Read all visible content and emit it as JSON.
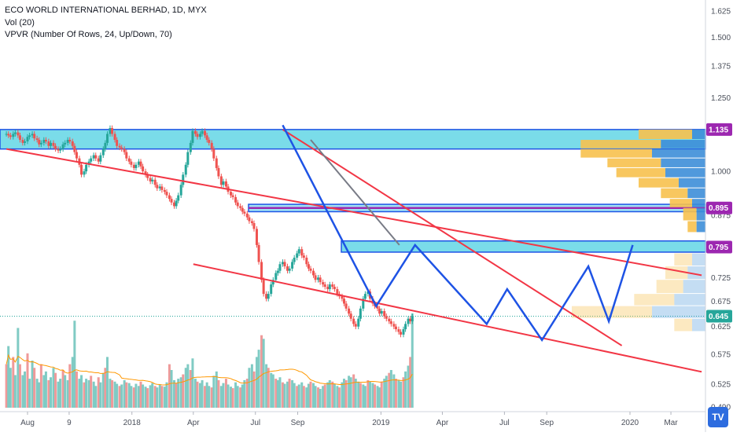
{
  "legend": {
    "line1": "ECO WORLD INTERNATIONAL BERHAD, 1D, MYX",
    "line2": "Vol (20)",
    "line3": "VPVR (Number Of Rows, 24, Up/Down, 70)"
  },
  "chart_data": {
    "type": "candlestick",
    "symbol": "ECO WORLD INTERNATIONAL BERHAD",
    "interval": "1D",
    "exchange": "MYX",
    "price_axis": {
      "ticks": [
        "1.625",
        "1.500",
        "1.375",
        "1.250",
        "1.000",
        "0.875",
        "0.725",
        "0.675",
        "0.625",
        "0.575",
        "0.525",
        "0.490"
      ],
      "tick_values": [
        1.625,
        1.5,
        1.375,
        1.25,
        1.0,
        0.875,
        0.725,
        0.675,
        0.625,
        0.575,
        0.525,
        0.49
      ],
      "log_scale": true
    },
    "time_axis": {
      "labels": [
        "Aug",
        "9",
        "2018",
        "Apr",
        "Jul",
        "Sep",
        "2019",
        "Apr",
        "Jul",
        "Sep",
        "2020",
        "Mar"
      ],
      "dates": [
        "2017-08-01",
        "2017-10-01",
        "2018-01-01",
        "2018-04-01",
        "2018-07-01",
        "2018-09-01",
        "2019-01-01",
        "2019-04-01",
        "2019-07-01",
        "2019-09-01",
        "2020-01-01",
        "2020-03-01"
      ]
    },
    "price_tags": [
      {
        "label": "1.135",
        "value": 1.135,
        "color": "#9c27b0"
      },
      {
        "label": "0.895",
        "value": 0.895,
        "color": "#9c27b0"
      },
      {
        "label": "0.795",
        "value": 0.795,
        "color": "#9c27b0"
      },
      {
        "label": "0.645",
        "value": 0.645,
        "color": "#26a69a"
      }
    ],
    "zones": [
      {
        "from": 1.07,
        "to": 1.135,
        "color": "#4dd0e1"
      },
      {
        "from": 0.885,
        "to": 0.905,
        "color": "#7fd8f0"
      },
      {
        "from": 0.783,
        "to": 0.81,
        "color": "#4dd0e1"
      }
    ],
    "red_lines": [
      {
        "from": [
          "2017-07-01",
          1.07
        ],
        "to": [
          "2020-04-15",
          0.73
        ]
      },
      {
        "from": [
          "2018-04-01",
          0.755
        ],
        "to": [
          "2020-04-15",
          0.545
        ]
      },
      {
        "from": [
          "2018-08-10",
          1.135
        ],
        "to": [
          "2019-12-20",
          0.59
        ]
      }
    ],
    "gray_line": {
      "from": [
        "2018-09-20",
        1.1
      ],
      "to": [
        "2019-01-28",
        0.8
      ]
    },
    "blue_zigzag": [
      [
        "2018-08-10",
        1.15
      ],
      [
        "2018-12-25",
        0.665
      ],
      [
        "2019-02-20",
        0.8
      ],
      [
        "2019-06-05",
        0.63
      ],
      [
        "2019-07-05",
        0.7
      ],
      [
        "2019-08-25",
        0.6
      ],
      [
        "2019-11-01",
        0.75
      ],
      [
        "2019-12-01",
        0.635
      ],
      [
        "2020-01-05",
        0.8
      ]
    ],
    "candles": {
      "start": "2017-07-01",
      "days_per_candle": 2.1,
      "close": [
        1.12,
        1.115,
        1.11,
        1.12,
        1.125,
        1.115,
        1.1,
        1.09,
        1.095,
        1.11,
        1.115,
        1.12,
        1.105,
        1.1,
        1.085,
        1.09,
        1.1,
        1.095,
        1.08,
        1.09,
        1.08,
        1.07,
        1.065,
        1.07,
        1.085,
        1.09,
        1.1,
        1.095,
        1.08,
        1.06,
        1.04,
        1.02,
        0.99,
        1.0,
        1.02,
        1.03,
        1.04,
        1.05,
        1.04,
        1.03,
        1.05,
        1.07,
        1.09,
        1.12,
        1.14,
        1.12,
        1.1,
        1.08,
        1.075,
        1.07,
        1.06,
        1.04,
        1.03,
        1.02,
        1.01,
        1.02,
        1.03,
        1.015,
        1.0,
        0.99,
        0.98,
        0.97,
        0.975,
        0.96,
        0.95,
        0.955,
        0.945,
        0.94,
        0.93,
        0.92,
        0.91,
        0.9,
        0.915,
        0.93,
        0.96,
        0.99,
        1.02,
        1.06,
        1.09,
        1.13,
        1.12,
        1.11,
        1.12,
        1.13,
        1.115,
        1.1,
        1.09,
        1.07,
        1.04,
        1.01,
        0.985,
        0.96,
        0.97,
        0.955,
        0.94,
        0.93,
        0.925,
        0.91,
        0.9,
        0.895,
        0.885,
        0.88,
        0.87,
        0.86,
        0.855,
        0.84,
        0.8,
        0.76,
        0.72,
        0.69,
        0.68,
        0.69,
        0.71,
        0.72,
        0.735,
        0.74,
        0.755,
        0.76,
        0.75,
        0.74,
        0.745,
        0.76,
        0.77,
        0.78,
        0.79,
        0.775,
        0.77,
        0.755,
        0.745,
        0.74,
        0.73,
        0.72,
        0.725,
        0.715,
        0.71,
        0.705,
        0.7,
        0.71,
        0.705,
        0.7,
        0.69,
        0.685,
        0.68,
        0.67,
        0.66,
        0.65,
        0.64,
        0.63,
        0.625,
        0.64,
        0.66,
        0.68,
        0.69,
        0.695,
        0.68,
        0.67,
        0.665,
        0.66,
        0.65,
        0.655,
        0.645,
        0.64,
        0.635,
        0.63,
        0.625,
        0.62,
        0.615,
        0.61,
        0.62,
        0.63,
        0.64,
        0.635,
        0.645
      ]
    },
    "volume": {
      "values": [
        60,
        85,
        55,
        70,
        45,
        110,
        60,
        45,
        50,
        75,
        40,
        65,
        55,
        40,
        35,
        60,
        45,
        50,
        38,
        42,
        55,
        48,
        36,
        40,
        52,
        45,
        38,
        60,
        70,
        120,
        50,
        40,
        45,
        35,
        40,
        38,
        44,
        36,
        30,
        42,
        35,
        48,
        55,
        70,
        40,
        38,
        36,
        33,
        30,
        32,
        38,
        35,
        34,
        30,
        28,
        33,
        30,
        36,
        32,
        29,
        27,
        31,
        34,
        30,
        28,
        32,
        30,
        29,
        35,
        60,
        52,
        38,
        34,
        40,
        42,
        46,
        55,
        60,
        52,
        68,
        40,
        36,
        34,
        38,
        30,
        35,
        30,
        28,
        44,
        50,
        38,
        30,
        34,
        40,
        32,
        29,
        27,
        35,
        30,
        28,
        32,
        38,
        40,
        55,
        60,
        50,
        70,
        80,
        100,
        95,
        60,
        55,
        48,
        46,
        40,
        38,
        42,
        35,
        33,
        36,
        40,
        38,
        34,
        30,
        32,
        35,
        30,
        28,
        33,
        36,
        34,
        30,
        28,
        26,
        30,
        32,
        35,
        38,
        36,
        33,
        30,
        28,
        35,
        40,
        38,
        44,
        42,
        46,
        40,
        36,
        34,
        32,
        30,
        38,
        36,
        34,
        32,
        30,
        28,
        36,
        40,
        44,
        48,
        52,
        46,
        40,
        38,
        36,
        42,
        50,
        58,
        70,
        130
      ],
      "ma_period": 20
    },
    "vpvr": {
      "rows": [
        {
          "lo": 1.1,
          "hi": 1.135,
          "up": 3,
          "down": 12
        },
        {
          "lo": 1.07,
          "hi": 1.1,
          "up": 10,
          "down": 18
        },
        {
          "lo": 1.04,
          "hi": 1.07,
          "up": 12,
          "down": 16
        },
        {
          "lo": 1.01,
          "hi": 1.04,
          "up": 10,
          "down": 12
        },
        {
          "lo": 0.98,
          "hi": 1.01,
          "up": 9,
          "down": 11
        },
        {
          "lo": 0.95,
          "hi": 0.98,
          "up": 6,
          "down": 9
        },
        {
          "lo": 0.92,
          "hi": 0.95,
          "up": 4,
          "down": 6
        },
        {
          "lo": 0.895,
          "hi": 0.92,
          "up": 3,
          "down": 5
        },
        {
          "lo": 0.86,
          "hi": 0.895,
          "up": 2,
          "down": 3
        },
        {
          "lo": 0.83,
          "hi": 0.86,
          "up": 2,
          "down": 2
        },
        {
          "lo": 0.75,
          "hi": 0.78,
          "up": 3,
          "down": 4
        },
        {
          "lo": 0.72,
          "hi": 0.75,
          "up": 4,
          "down": 5
        },
        {
          "lo": 0.69,
          "hi": 0.72,
          "up": 5,
          "down": 6
        },
        {
          "lo": 0.665,
          "hi": 0.69,
          "up": 7,
          "down": 9
        },
        {
          "lo": 0.64,
          "hi": 0.665,
          "up": 12,
          "down": 18
        },
        {
          "lo": 0.615,
          "hi": 0.64,
          "up": 3,
          "down": 4
        }
      ]
    },
    "grid": false,
    "colors": {
      "up": "#26a69a",
      "down": "#ef5350",
      "zone": "#4dd0e1",
      "trend_red": "#f23645",
      "zigzag": "#1e53e5",
      "tag": "#9c27b0",
      "last": "#26a69a"
    }
  }
}
